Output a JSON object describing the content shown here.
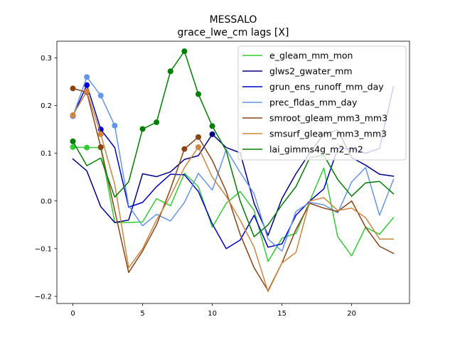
{
  "chart_data": {
    "type": "line",
    "title": "MESSALO",
    "subtitle": "grace_lwe_cm lags [X]",
    "xlabel": "",
    "ylabel": "",
    "xlim": [
      -1.15,
      24.15
    ],
    "ylim": [
      -0.215,
      0.335
    ],
    "xticks": [
      0,
      5,
      10,
      15,
      20
    ],
    "yticks": [
      -0.2,
      -0.1,
      0.0,
      0.1,
      0.2,
      0.3
    ],
    "ytick_labels": [
      "−0.2",
      "−0.1",
      "0.0",
      "0.1",
      "0.2",
      "0.3"
    ],
    "grid": false,
    "legend_position": "top-right",
    "x": [
      0,
      1,
      2,
      3,
      4,
      5,
      6,
      7,
      8,
      9,
      10,
      11,
      12,
      13,
      14,
      15,
      16,
      17,
      18,
      19,
      20,
      21,
      22,
      23
    ],
    "series": [
      {
        "name": "e_gleam_mm_mon",
        "color": "#32cd32",
        "values": [
          0.113,
          0.112,
          0.112,
          -0.045,
          -0.045,
          -0.044,
          0.005,
          -0.01,
          0.058,
          0.03,
          -0.055,
          -0.005,
          0.02,
          -0.02,
          -0.127,
          -0.078,
          -0.068,
          0.0,
          0.069,
          -0.075,
          -0.115,
          -0.055,
          -0.07,
          -0.035
        ],
        "markers": [
          0,
          1,
          2
        ]
      },
      {
        "name": "glws2_gwater_mm",
        "color": "#00008b",
        "values": [
          0.088,
          0.063,
          -0.012,
          -0.045,
          -0.04,
          0.057,
          0.051,
          0.061,
          0.087,
          0.095,
          0.14,
          0.112,
          0.101,
          -0.005,
          -0.072,
          0.005,
          0.057,
          0.101,
          0.14,
          0.149,
          0.091,
          0.075,
          0.056,
          0.052
        ],
        "markers": [
          10
        ]
      },
      {
        "name": "grun_ens_runoff_mm_day",
        "color": "#0000cd",
        "values": [
          0.178,
          0.243,
          0.15,
          0.112,
          -0.013,
          -0.003,
          0.03,
          0.056,
          0.055,
          0.02,
          -0.048,
          -0.1,
          -0.082,
          -0.03,
          -0.097,
          -0.09,
          -0.03,
          0.0,
          0.025,
          0.11,
          0.11,
          0.1,
          0.11,
          0.24
        ],
        "markers": [
          0,
          1,
          2
        ]
      },
      {
        "name": "prec_fldas_mm_day",
        "color": "#6495ed",
        "values": [
          0.178,
          0.26,
          0.221,
          0.158,
          -0.01,
          -0.052,
          -0.028,
          -0.042,
          -0.003,
          0.058,
          0.023,
          0.108,
          0.06,
          0.015,
          -0.08,
          -0.105,
          -0.022,
          -0.003,
          -0.008,
          -0.025,
          0.04,
          0.07,
          -0.03,
          0.045
        ],
        "markers": [
          0,
          1,
          2,
          3
        ]
      },
      {
        "name": "smroot_gleam_mm3_mm3",
        "color": "#8b4513",
        "values": [
          0.236,
          0.228,
          0.113,
          -0.02,
          -0.15,
          -0.105,
          -0.05,
          0.025,
          0.109,
          0.134,
          0.085,
          0.02,
          -0.07,
          -0.14,
          -0.188,
          -0.13,
          -0.06,
          -0.005,
          -0.015,
          -0.022,
          0.0,
          -0.055,
          -0.095,
          -0.11
        ],
        "markers": [
          0,
          1,
          2,
          8,
          9
        ]
      },
      {
        "name": "smsurf_gleam_mm3_mm3",
        "color": "#cd853f",
        "values": [
          0.18,
          0.23,
          0.14,
          0.035,
          -0.14,
          -0.1,
          -0.04,
          0.01,
          0.07,
          0.113,
          0.05,
          0.01,
          -0.04,
          -0.097,
          -0.19,
          -0.13,
          -0.108,
          0.0,
          0.007,
          -0.02,
          -0.015,
          -0.035,
          -0.08,
          -0.08
        ],
        "markers": [
          0,
          1,
          2,
          9
        ]
      },
      {
        "name": "lai_gimms4g_m2_m2",
        "color": "#008000",
        "values": [
          0.125,
          0.074,
          0.09,
          0.008,
          0.04,
          0.151,
          0.165,
          0.272,
          0.314,
          0.224,
          0.157,
          0.105,
          0.0,
          -0.075,
          -0.05,
          -0.008,
          0.03,
          0.091,
          0.096,
          0.045,
          0.01,
          0.038,
          0.041,
          0.015
        ],
        "markers": [
          0,
          5,
          6,
          7,
          8,
          9,
          10
        ]
      }
    ]
  }
}
